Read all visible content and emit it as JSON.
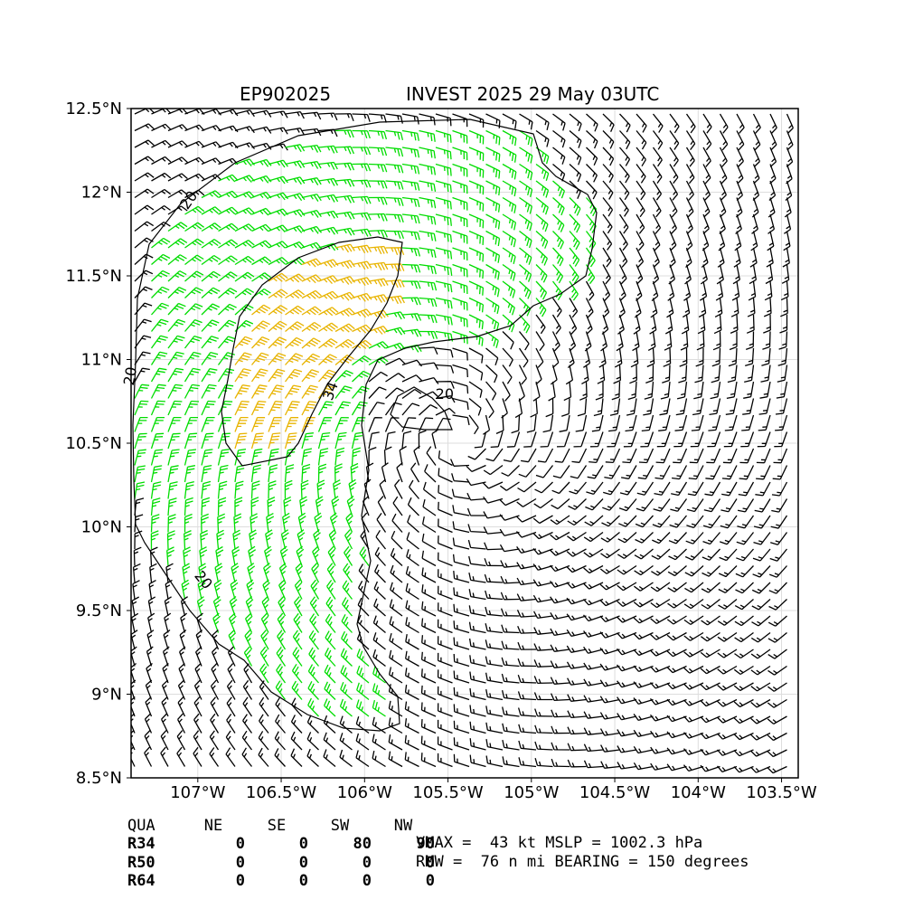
{
  "title": {
    "storm_id": "EP902025",
    "description": "INVEST 2025 29 May 03UTC"
  },
  "map": {
    "lon_range": [
      -107.4,
      -103.4
    ],
    "lat_range": [
      8.5,
      12.5
    ],
    "x_ticks": [
      {
        "value": -107.0,
        "label": "107°W"
      },
      {
        "value": -106.5,
        "label": "106.5°W"
      },
      {
        "value": -106.0,
        "label": "106°W"
      },
      {
        "value": -105.5,
        "label": "105.5°W"
      },
      {
        "value": -105.0,
        "label": "105°W"
      },
      {
        "value": -104.5,
        "label": "104.5°W"
      },
      {
        "value": -104.0,
        "label": "104°W"
      },
      {
        "value": -103.5,
        "label": "103.5°W"
      }
    ],
    "y_ticks": [
      {
        "value": 12.5,
        "label": "12.5°N"
      },
      {
        "value": 12.0,
        "label": "12°N"
      },
      {
        "value": 11.5,
        "label": "11.5°N"
      },
      {
        "value": 11.0,
        "label": "11°N"
      },
      {
        "value": 10.5,
        "label": "10.5°N"
      },
      {
        "value": 10.0,
        "label": "10°N"
      },
      {
        "value": 9.5,
        "label": "9.5°N"
      },
      {
        "value": 9.0,
        "label": "9°N"
      },
      {
        "value": 8.5,
        "label": "8.5°N"
      }
    ],
    "grid": true,
    "storm_center": {
      "lon": -105.45,
      "lat": 10.55
    },
    "barb_colors": {
      "below_34kt": "#000000",
      "34_to_50kt": "#00dd00",
      "50_to_64kt": "#e8b400"
    },
    "contour_labels": [
      {
        "text": "20",
        "lon": -107.05,
        "lat": 11.95,
        "angle": -55
      },
      {
        "text": "20",
        "lon": -107.4,
        "lat": 10.9,
        "angle": -80
      },
      {
        "text": "20",
        "lon": -106.97,
        "lat": 9.68,
        "angle": 50
      },
      {
        "text": "20",
        "lon": -105.52,
        "lat": 10.79,
        "angle": 0
      },
      {
        "text": "34",
        "lon": -106.2,
        "lat": 10.81,
        "angle": -70
      }
    ]
  },
  "radii_table": {
    "header": [
      "QUA",
      "NE",
      "SE",
      "SW",
      "NW"
    ],
    "rows": [
      [
        "R34",
        "0",
        "0",
        "80",
        "90"
      ],
      [
        "R50",
        "0",
        "0",
        "0",
        "0"
      ],
      [
        "R64",
        "0",
        "0",
        "0",
        "0"
      ]
    ]
  },
  "stats": {
    "line1": "VMAX =  43 kt MSLP = 1002.3 hPa",
    "line2": "RMW =  76 n mi BEARING = 150 degrees"
  }
}
